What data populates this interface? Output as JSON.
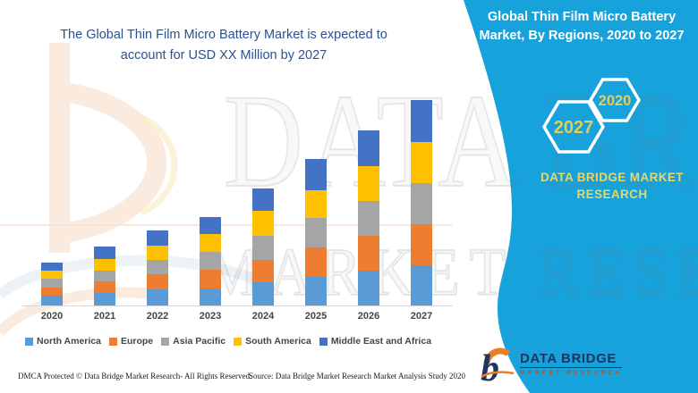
{
  "main_title": {
    "line1": "The Global Thin Film Micro Battery Market is expected to",
    "line2": "account for USD XX Million by 2027",
    "color": "#2B5191"
  },
  "side_panel": {
    "color": "#17A2DC",
    "title_line1": "Global Thin Film Micro Battery",
    "title_line2": "Market, By Regions, 2020 to 2027",
    "hexagons": [
      {
        "label": "2027"
      },
      {
        "label": "2020"
      }
    ],
    "brand_text_line1": "DATA BRIDGE MARKET",
    "brand_text_line2": "RESEARCH",
    "accent_yellow": "#E3CD55"
  },
  "logo": {
    "line1": "DATA BRIDGE",
    "line2": "MARKET RESEARCH"
  },
  "watermark": {
    "line1": "DATA BRIDGE",
    "line2": "MARKET RESEARCH"
  },
  "footer": {
    "dmca": "DMCA Protected © Data Bridge Market Research- All Rights Reserved.",
    "source": "Source: Data Bridge Market Research Market Analysis Study 2020"
  },
  "chart_data": {
    "type": "bar",
    "stacked": true,
    "title": "Global Thin Film Micro Battery Market, By Regions, 2020 to 2027",
    "xlabel": "",
    "ylabel": "",
    "y_axis_visible": false,
    "gridlines": false,
    "legend_position": "bottom",
    "note": "No value axis shown in source; values are relative units estimated from bar heights",
    "categories": [
      "2020",
      "2021",
      "2022",
      "2023",
      "2024",
      "2025",
      "2026",
      "2027"
    ],
    "series": [
      {
        "name": "North America",
        "color": "#5B9BD5",
        "values": [
          11,
          14,
          18,
          19,
          26,
          32,
          39,
          45
        ]
      },
      {
        "name": "Europe",
        "color": "#ED7D31",
        "values": [
          9,
          13,
          17,
          21,
          25,
          33,
          39,
          46
        ]
      },
      {
        "name": "Asia Pacific",
        "color": "#A5A5A5",
        "values": [
          10,
          12,
          16,
          20,
          27,
          33,
          39,
          46
        ]
      },
      {
        "name": "South America",
        "color": "#FFC000",
        "values": [
          9,
          13,
          16,
          20,
          28,
          31,
          39,
          46
        ]
      },
      {
        "name": "Middle East and Africa",
        "color": "#4472C4",
        "values": [
          9,
          14,
          17,
          19,
          25,
          35,
          40,
          47
        ]
      }
    ],
    "totals": [
      48,
      66,
      84,
      99,
      131,
      164,
      196,
      230
    ]
  }
}
